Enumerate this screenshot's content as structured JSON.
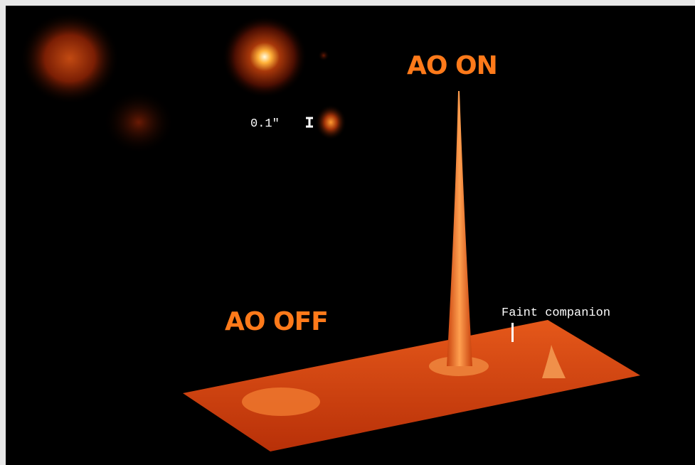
{
  "labels": {
    "ao_on": "AO ON",
    "ao_off": "AO OFF",
    "scale": "0.1\"",
    "companion": "Faint companion"
  }
}
